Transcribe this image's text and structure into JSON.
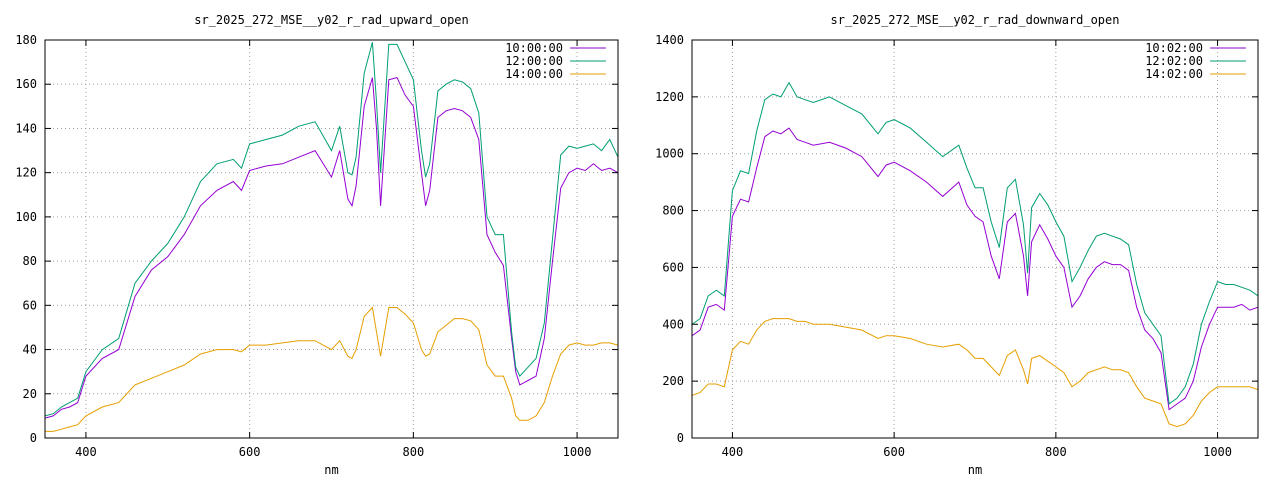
{
  "colors": {
    "series1": "#9400d3",
    "series2": "#009e73",
    "series3": "#e69f00",
    "grid": "#a0a0a0"
  },
  "chart_data": [
    {
      "type": "line",
      "title": "sr_2025_272_MSE__y02_r_rad_upward_open",
      "xlabel": "nm",
      "ylabel": "",
      "xlim": [
        350,
        1050
      ],
      "ylim": [
        0,
        180
      ],
      "xticks": [
        400,
        600,
        800,
        1000
      ],
      "yticks": [
        0,
        20,
        40,
        60,
        80,
        100,
        120,
        140,
        160,
        180
      ],
      "grid": true,
      "legend": "top-right",
      "series": [
        {
          "name": "10:00:00",
          "x": [
            350,
            360,
            370,
            380,
            390,
            400,
            420,
            440,
            460,
            480,
            500,
            520,
            540,
            560,
            580,
            590,
            600,
            620,
            640,
            660,
            680,
            700,
            710,
            720,
            725,
            730,
            740,
            750,
            755,
            760,
            770,
            780,
            790,
            800,
            810,
            815,
            820,
            830,
            840,
            850,
            860,
            870,
            880,
            890,
            900,
            910,
            920,
            925,
            930,
            940,
            950,
            960,
            970,
            980,
            990,
            1000,
            1010,
            1020,
            1030,
            1040,
            1050
          ],
          "y": [
            9,
            10,
            13,
            14,
            16,
            28,
            36,
            40,
            64,
            76,
            82,
            92,
            105,
            112,
            116,
            112,
            121,
            123,
            124,
            127,
            130,
            118,
            130,
            108,
            105,
            114,
            150,
            163,
            140,
            105,
            162,
            163,
            155,
            150,
            120,
            105,
            112,
            145,
            148,
            149,
            148,
            145,
            135,
            92,
            84,
            78,
            45,
            30,
            24,
            26,
            28,
            45,
            80,
            113,
            120,
            122,
            121,
            124,
            121,
            122,
            120
          ]
        },
        {
          "name": "12:00:00",
          "x": [
            350,
            360,
            370,
            380,
            390,
            400,
            420,
            440,
            460,
            480,
            500,
            520,
            540,
            560,
            580,
            590,
            600,
            620,
            640,
            660,
            680,
            700,
            710,
            720,
            725,
            730,
            740,
            750,
            755,
            760,
            770,
            780,
            790,
            800,
            810,
            815,
            820,
            830,
            840,
            850,
            860,
            870,
            880,
            890,
            900,
            910,
            920,
            925,
            930,
            940,
            950,
            960,
            970,
            980,
            990,
            1000,
            1010,
            1020,
            1030,
            1040,
            1050
          ],
          "y": [
            10,
            11,
            14,
            16,
            18,
            30,
            40,
            45,
            70,
            80,
            88,
            100,
            116,
            124,
            126,
            122,
            133,
            135,
            137,
            141,
            143,
            130,
            141,
            120,
            119,
            127,
            165,
            179,
            152,
            120,
            178,
            178,
            170,
            162,
            130,
            118,
            124,
            157,
            160,
            162,
            161,
            158,
            147,
            100,
            92,
            92,
            48,
            32,
            28,
            32,
            36,
            52,
            90,
            128,
            132,
            131,
            132,
            133,
            130,
            135,
            127
          ]
        },
        {
          "name": "14:00:00",
          "x": [
            350,
            360,
            370,
            380,
            390,
            400,
            420,
            440,
            460,
            480,
            500,
            520,
            540,
            560,
            580,
            590,
            600,
            620,
            640,
            660,
            680,
            700,
            710,
            720,
            725,
            730,
            740,
            750,
            755,
            760,
            770,
            780,
            790,
            800,
            810,
            815,
            820,
            830,
            840,
            850,
            860,
            870,
            880,
            890,
            900,
            910,
            920,
            925,
            930,
            940,
            950,
            960,
            970,
            980,
            990,
            1000,
            1010,
            1020,
            1030,
            1040,
            1050
          ],
          "y": [
            3,
            3,
            4,
            5,
            6,
            10,
            14,
            16,
            24,
            27,
            30,
            33,
            38,
            40,
            40,
            39,
            42,
            42,
            43,
            44,
            44,
            40,
            44,
            37,
            36,
            40,
            55,
            59,
            48,
            37,
            59,
            59,
            56,
            52,
            40,
            37,
            38,
            48,
            51,
            54,
            54,
            53,
            49,
            33,
            28,
            28,
            18,
            10,
            8,
            8,
            10,
            16,
            28,
            38,
            42,
            43,
            42,
            42,
            43,
            43,
            42
          ]
        }
      ]
    },
    {
      "type": "line",
      "title": "sr_2025_272_MSE__y02_r_rad_downward_open",
      "xlabel": "nm",
      "ylabel": "",
      "xlim": [
        350,
        1050
      ],
      "ylim": [
        0,
        1400
      ],
      "xticks": [
        400,
        600,
        800,
        1000
      ],
      "yticks": [
        0,
        200,
        400,
        600,
        800,
        1000,
        1200,
        1400
      ],
      "grid": true,
      "legend": "top-right",
      "series": [
        {
          "name": "10:02:00",
          "x": [
            350,
            360,
            370,
            380,
            390,
            400,
            410,
            420,
            430,
            440,
            450,
            460,
            470,
            480,
            490,
            500,
            520,
            540,
            560,
            580,
            590,
            600,
            620,
            640,
            660,
            680,
            690,
            700,
            710,
            720,
            730,
            740,
            750,
            760,
            765,
            770,
            780,
            790,
            800,
            810,
            820,
            830,
            840,
            850,
            860,
            870,
            880,
            890,
            900,
            910,
            920,
            930,
            940,
            950,
            960,
            970,
            980,
            990,
            1000,
            1010,
            1020,
            1030,
            1040,
            1050
          ],
          "y": [
            360,
            380,
            460,
            470,
            450,
            780,
            840,
            830,
            950,
            1060,
            1080,
            1070,
            1090,
            1050,
            1040,
            1030,
            1040,
            1020,
            990,
            920,
            960,
            970,
            940,
            900,
            850,
            900,
            820,
            780,
            760,
            640,
            560,
            760,
            790,
            640,
            500,
            690,
            750,
            700,
            640,
            600,
            460,
            500,
            560,
            600,
            620,
            610,
            610,
            590,
            460,
            380,
            350,
            300,
            100,
            120,
            140,
            200,
            320,
            400,
            460,
            460,
            460,
            470,
            450,
            460
          ]
        },
        {
          "name": "12:02:00",
          "x": [
            350,
            360,
            370,
            380,
            390,
            400,
            410,
            420,
            430,
            440,
            450,
            460,
            470,
            480,
            490,
            500,
            520,
            540,
            560,
            580,
            590,
            600,
            620,
            640,
            660,
            680,
            690,
            700,
            710,
            720,
            730,
            740,
            750,
            760,
            765,
            770,
            780,
            790,
            800,
            810,
            820,
            830,
            840,
            850,
            860,
            870,
            880,
            890,
            900,
            910,
            920,
            930,
            940,
            950,
            960,
            970,
            980,
            990,
            1000,
            1010,
            1020,
            1030,
            1040,
            1050
          ],
          "y": [
            400,
            420,
            500,
            520,
            500,
            870,
            940,
            930,
            1080,
            1190,
            1210,
            1200,
            1250,
            1200,
            1190,
            1180,
            1200,
            1170,
            1140,
            1070,
            1110,
            1120,
            1090,
            1040,
            990,
            1030,
            950,
            880,
            880,
            760,
            670,
            880,
            910,
            750,
            580,
            810,
            860,
            820,
            760,
            710,
            550,
            600,
            660,
            710,
            720,
            710,
            700,
            680,
            540,
            440,
            400,
            360,
            120,
            140,
            180,
            260,
            400,
            480,
            550,
            540,
            540,
            530,
            520,
            500
          ]
        },
        {
          "name": "14:02:00",
          "x": [
            350,
            360,
            370,
            380,
            390,
            400,
            410,
            420,
            430,
            440,
            450,
            460,
            470,
            480,
            490,
            500,
            520,
            540,
            560,
            580,
            590,
            600,
            620,
            640,
            660,
            680,
            690,
            700,
            710,
            720,
            730,
            740,
            750,
            760,
            765,
            770,
            780,
            790,
            800,
            810,
            820,
            830,
            840,
            850,
            860,
            870,
            880,
            890,
            900,
            910,
            920,
            930,
            940,
            950,
            960,
            970,
            980,
            990,
            1000,
            1010,
            1020,
            1030,
            1040,
            1050
          ],
          "y": [
            150,
            160,
            190,
            190,
            180,
            310,
            340,
            330,
            380,
            410,
            420,
            420,
            420,
            410,
            410,
            400,
            400,
            390,
            380,
            350,
            360,
            360,
            350,
            330,
            320,
            330,
            310,
            280,
            280,
            250,
            220,
            290,
            310,
            240,
            190,
            280,
            290,
            270,
            250,
            230,
            180,
            200,
            230,
            240,
            250,
            240,
            240,
            230,
            180,
            140,
            130,
            120,
            50,
            40,
            50,
            80,
            130,
            160,
            180,
            180,
            180,
            180,
            180,
            170
          ]
        }
      ]
    }
  ]
}
